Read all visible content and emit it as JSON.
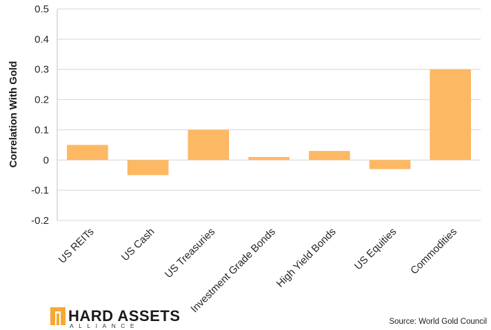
{
  "chart_data": {
    "type": "bar",
    "categories": [
      "US REITs",
      "US Cash",
      "US Treasuries",
      "Investment Grade Bonds",
      "High Yield Bonds",
      "US Equities",
      "Commodities"
    ],
    "values": [
      0.05,
      -0.05,
      0.1,
      0.01,
      0.03,
      -0.03,
      0.3
    ],
    "ylabel": "Correlation With Gold",
    "xlabel": "",
    "ylim": [
      -0.2,
      0.5
    ],
    "yticks": [
      0.5,
      0.4,
      0.3,
      0.2,
      0.1,
      0,
      -0.1,
      -0.2
    ],
    "ytick_labels": [
      "0.5",
      "0.4",
      "0.3",
      "0.2",
      "0.1",
      "0",
      "-0.1",
      "-0.2"
    ],
    "grid": true,
    "bar_color": "#FDB863"
  },
  "logo": {
    "name": "HARD ASSETS",
    "tagline": "ALLIANCE",
    "accent_color": "#F7A833"
  },
  "source": "Source: World Gold Council"
}
